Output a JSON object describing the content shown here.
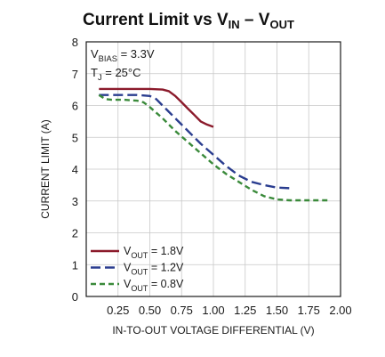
{
  "chart_data": {
    "type": "line",
    "title": {
      "prefix": "Current Limit vs V",
      "sub1": "IN",
      "middle": " – V",
      "sub2": "OUT"
    },
    "xlabel": "IN-TO-OUT VOLTAGE DIFFERENTIAL (V)",
    "ylabel": "CURRENT LIMIT (A)",
    "xlim": [
      0,
      2.0
    ],
    "ylim": [
      0,
      8
    ],
    "x_ticks": [
      "0.25",
      "0.50",
      "0.75",
      "1.00",
      "1.25",
      "1.50",
      "1.75",
      "2.00"
    ],
    "x_tick_values": [
      0.25,
      0.5,
      0.75,
      1.0,
      1.25,
      1.5,
      1.75,
      2.0
    ],
    "y_ticks": [
      "0",
      "1",
      "2",
      "3",
      "4",
      "5",
      "6",
      "7",
      "8"
    ],
    "y_tick_values": [
      0,
      1,
      2,
      3,
      4,
      5,
      6,
      7,
      8
    ],
    "grid": true,
    "annotations": [
      {
        "main": "V",
        "sub": "BIAS",
        "rest": " = 3.3V"
      },
      {
        "main": "T",
        "sub": "J",
        "rest": " = 25°C"
      }
    ],
    "legend_position": "bottom-left",
    "series": [
      {
        "name": {
          "main": "V",
          "sub": "OUT",
          "rest": " = 1.8V"
        },
        "color": "#8b1a2b",
        "style": "solid",
        "x": [
          0.1,
          0.2,
          0.3,
          0.4,
          0.5,
          0.6,
          0.65,
          0.7,
          0.75,
          0.8,
          0.85,
          0.9,
          0.95,
          1.0
        ],
        "y": [
          6.52,
          6.52,
          6.52,
          6.52,
          6.52,
          6.5,
          6.45,
          6.3,
          6.1,
          5.9,
          5.7,
          5.5,
          5.4,
          5.33
        ]
      },
      {
        "name": {
          "main": "V",
          "sub": "OUT",
          "rest": " = 1.2V"
        },
        "color": "#2a3d8f",
        "style": "dashed",
        "x": [
          0.1,
          0.2,
          0.3,
          0.4,
          0.5,
          0.55,
          0.6,
          0.7,
          0.8,
          0.9,
          1.0,
          1.1,
          1.2,
          1.3,
          1.4,
          1.5,
          1.6
        ],
        "y": [
          6.33,
          6.33,
          6.33,
          6.33,
          6.3,
          6.2,
          6.0,
          5.6,
          5.2,
          4.8,
          4.45,
          4.1,
          3.8,
          3.6,
          3.5,
          3.42,
          3.4
        ]
      },
      {
        "name": {
          "main": "V",
          "sub": "OUT",
          "rest": " = 0.8V"
        },
        "color": "#3a8a3a",
        "style": "dashed",
        "x": [
          0.1,
          0.15,
          0.2,
          0.3,
          0.4,
          0.45,
          0.5,
          0.6,
          0.7,
          0.8,
          0.9,
          1.0,
          1.1,
          1.2,
          1.3,
          1.4,
          1.5,
          1.6,
          1.7,
          1.8,
          1.9
        ],
        "y": [
          6.33,
          6.2,
          6.18,
          6.18,
          6.15,
          6.1,
          5.95,
          5.6,
          5.2,
          4.85,
          4.5,
          4.15,
          3.85,
          3.6,
          3.35,
          3.15,
          3.05,
          3.02,
          3.02,
          3.02,
          3.02
        ]
      }
    ]
  }
}
